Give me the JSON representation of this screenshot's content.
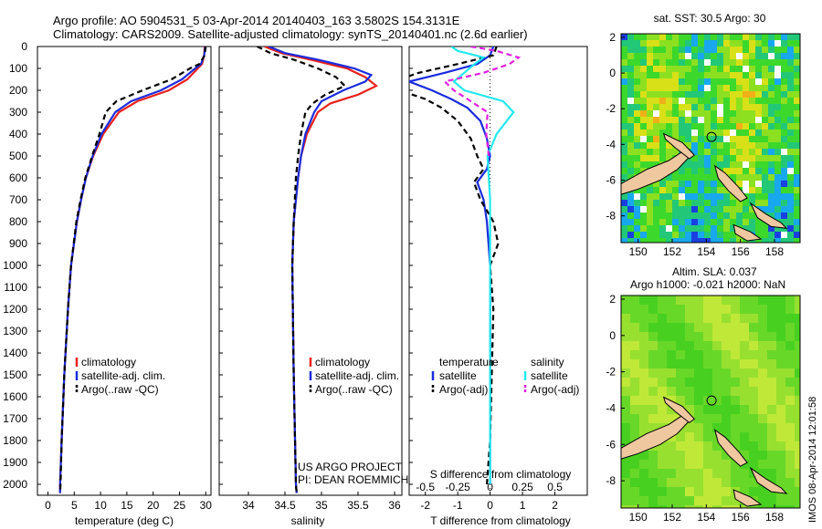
{
  "header": {
    "line1": "Argo profile: AO 5904531_5 03-Apr-2014 20140403_163 3.5802S 154.3131E",
    "line2": "Climatology: CARS2009. Satellite-adjusted climatology: synTS_20140401.nc (2.6d earlier)"
  },
  "credits": {
    "project": "US ARGO PROJECT",
    "pi": "PI: DEAN ROEMMICH"
  },
  "stamp": "IMOS 08-Apr-2014 12:01:58",
  "colors": {
    "climatology": "#e8221c",
    "satellite": "#1a2cdc",
    "argo": "#000000",
    "sat_salinity": "#22e8ee",
    "argo_salinity": "#e020e0",
    "land": "#f0c8a0"
  },
  "chart_data": [
    {
      "type": "line",
      "xlabel": "temperature (deg C)",
      "ylabel": "",
      "xlim": [
        -2,
        31
      ],
      "ylim": [
        2050,
        0
      ],
      "xticks": [
        "0",
        "5",
        "10",
        "15",
        "20",
        "25",
        "30"
      ],
      "yticks": [
        "0",
        "100",
        "200",
        "300",
        "400",
        "500",
        "600",
        "700",
        "800",
        "900",
        "1000",
        "1100",
        "1200",
        "1300",
        "1400",
        "1500",
        "1600",
        "1700",
        "1800",
        "1900",
        "2000"
      ],
      "legend": {
        "position": "lower-center",
        "entries": [
          "climatology",
          "satellite-adj. clim.",
          "Argo(..raw -QC)"
        ]
      },
      "series": [
        {
          "name": "climatology",
          "style": "solid",
          "color": "#e8221c",
          "depth": [
            0,
            40,
            80,
            100,
            150,
            200,
            250,
            300,
            400,
            500,
            600,
            700,
            800,
            1000,
            1200,
            1500,
            1800,
            2000,
            2040
          ],
          "values": [
            29.8,
            29.7,
            29.3,
            28.5,
            26.5,
            23.0,
            17.0,
            13.5,
            10.5,
            8.6,
            7.2,
            6.3,
            5.5,
            4.4,
            3.8,
            3.1,
            2.6,
            2.3,
            2.3
          ]
        },
        {
          "name": "satellite-adj. clim.",
          "style": "solid",
          "color": "#1a2cdc",
          "depth": [
            0,
            40,
            80,
            100,
            150,
            200,
            250,
            300,
            400,
            500,
            600,
            700,
            800,
            1000,
            1200,
            1500,
            1800,
            2000,
            2040
          ],
          "values": [
            29.9,
            29.7,
            29.1,
            28.0,
            25.5,
            21.5,
            15.8,
            12.8,
            10.2,
            8.5,
            7.2,
            6.3,
            5.5,
            4.4,
            3.8,
            3.1,
            2.6,
            2.3,
            2.3
          ]
        },
        {
          "name": "Argo(..raw -QC)",
          "style": "dashed",
          "color": "#000000",
          "depth": [
            0,
            40,
            80,
            100,
            150,
            200,
            250,
            300,
            400,
            500,
            600,
            700,
            800,
            1000,
            1200,
            1500,
            1800,
            2000,
            2040
          ],
          "values": [
            30.0,
            29.8,
            28.8,
            27.0,
            23.5,
            18.0,
            13.0,
            11.0,
            9.8,
            8.4,
            7.1,
            6.2,
            5.4,
            4.4,
            3.8,
            3.1,
            2.6,
            2.4,
            2.3
          ]
        }
      ]
    },
    {
      "type": "line",
      "xlabel": "salinity",
      "ylabel": "",
      "xlim": [
        33.6,
        36.1
      ],
      "ylim": [
        2050,
        0
      ],
      "xticks": [
        "34",
        "34.5",
        "35",
        "35.5",
        "36"
      ],
      "legend": {
        "position": "lower-right",
        "entries": [
          "climatology",
          "satellite-adj. clim.",
          "Argo(..raw -QC)"
        ]
      },
      "series": [
        {
          "name": "climatology",
          "style": "solid",
          "color": "#e8221c",
          "depth": [
            0,
            30,
            60,
            100,
            140,
            180,
            220,
            260,
            300,
            400,
            500,
            600,
            800,
            1000,
            1500,
            2000,
            2040
          ],
          "values": [
            34.22,
            34.45,
            34.85,
            35.35,
            35.6,
            35.75,
            35.5,
            35.12,
            34.95,
            34.8,
            34.72,
            34.68,
            34.62,
            34.6,
            34.62,
            34.65,
            34.66
          ]
        },
        {
          "name": "satellite-adj. clim.",
          "style": "solid",
          "color": "#1a2cdc",
          "depth": [
            0,
            30,
            60,
            100,
            130,
            160,
            200,
            250,
            300,
            400,
            500,
            600,
            800,
            1000,
            1500,
            2000,
            2040
          ],
          "values": [
            34.28,
            34.5,
            34.95,
            35.45,
            35.68,
            35.6,
            35.3,
            35.0,
            34.9,
            34.78,
            34.72,
            34.68,
            34.62,
            34.6,
            34.62,
            34.65,
            34.66
          ]
        },
        {
          "name": "Argo(..raw -QC)",
          "style": "dashed",
          "color": "#000000",
          "depth": [
            0,
            30,
            60,
            100,
            140,
            180,
            220,
            260,
            300,
            400,
            500,
            600,
            800,
            1000,
            1500,
            2000,
            2040
          ],
          "values": [
            34.12,
            34.3,
            34.62,
            34.95,
            35.2,
            35.32,
            35.05,
            34.88,
            34.78,
            34.72,
            34.68,
            34.65,
            34.62,
            34.6,
            34.62,
            34.65,
            34.66
          ]
        }
      ]
    },
    {
      "type": "line",
      "xlabel": "T difference from climatology",
      "x2label": "S difference from climatology",
      "xlim": [
        -2.5,
        3.0
      ],
      "ylim": [
        2050,
        0
      ],
      "xticks": [
        "-2",
        "-1",
        "0",
        "1",
        "2"
      ],
      "x2ticks": [
        "-0.5",
        "-0.25",
        "0",
        "0.25",
        "0.5"
      ],
      "legend": {
        "position": "lower-center",
        "columns": [
          {
            "header": "temperature",
            "entries": [
              "satellite",
              "Argo(-adj)"
            ]
          },
          {
            "header": "salinity",
            "entries": [
              "satellite",
              "Argo(-adj)"
            ]
          }
        ]
      },
      "series": [
        {
          "name": "satellite",
          "group": "temperature",
          "style": "solid",
          "color": "#1a2cdc",
          "depth": [
            0,
            40,
            80,
            120,
            160,
            200,
            240,
            280,
            340,
            420,
            500,
            560,
            620,
            700,
            800,
            1000,
            1500,
            2000
          ],
          "values": [
            0.1,
            0.0,
            -0.4,
            -1.4,
            -2.5,
            -1.8,
            -1.2,
            -0.7,
            -0.3,
            -0.1,
            0.0,
            -0.1,
            -0.4,
            -0.2,
            -0.1,
            0.0,
            0.0,
            0.0
          ]
        },
        {
          "name": "Argo(-adj)",
          "group": "temperature",
          "style": "dashed",
          "color": "#000000",
          "depth": [
            0,
            40,
            80,
            120,
            160,
            200,
            240,
            280,
            340,
            420,
            500,
            560,
            620,
            700,
            800,
            900,
            1000,
            1200,
            1500,
            1800,
            2000
          ],
          "values": [
            0.2,
            0.1,
            -1.0,
            -2.2,
            -3.0,
            -2.8,
            -2.0,
            -1.5,
            -1.0,
            -0.6,
            -0.4,
            -0.2,
            -0.5,
            -0.3,
            0.1,
            0.25,
            0.0,
            0.1,
            0.05,
            0.0,
            -0.1
          ]
        },
        {
          "name": "satellite",
          "group": "salinity",
          "style": "solid",
          "color": "#22e8ee",
          "depth": [
            0,
            20,
            50,
            80,
            120,
            160,
            200,
            250,
            300,
            400,
            500,
            700,
            1000,
            1500,
            2000
          ],
          "values": [
            -0.3,
            -0.25,
            -0.05,
            -0.12,
            -0.2,
            -0.28,
            -0.2,
            0.1,
            0.18,
            0.05,
            -0.02,
            0.0,
            0.0,
            0.0,
            0.0
          ]
        },
        {
          "name": "Argo(-adj)",
          "group": "salinity",
          "style": "dashed",
          "color": "#e020e0",
          "depth": [
            0,
            20,
            50,
            80,
            120,
            160,
            200,
            250,
            300,
            400,
            500
          ],
          "values": [
            -0.15,
            0.05,
            0.22,
            0.15,
            -0.05,
            -0.35,
            -0.28,
            -0.15,
            -0.02,
            -0.03,
            -0.01
          ]
        }
      ]
    },
    {
      "type": "heatmap",
      "title": "sat. SST: 30.5 Argo: 30",
      "xlim": [
        149,
        159.5
      ],
      "ylim": [
        -9.5,
        2.2
      ],
      "xticks": [
        "150",
        "152",
        "154",
        "156",
        "158"
      ],
      "yticks": [
        "2",
        "0",
        "-2",
        "-4",
        "-6",
        "-8"
      ],
      "marker": {
        "lon": 154.31,
        "lat": -3.58
      }
    },
    {
      "type": "heatmap",
      "title": "Altim. SLA: 0.037",
      "subtitle": "Argo h1000: -0.021 h2000: NaN",
      "xlim": [
        149,
        159.5
      ],
      "ylim": [
        -9.5,
        2.2
      ],
      "xticks": [
        "150",
        "152",
        "154",
        "156",
        "158"
      ],
      "yticks": [
        "2",
        "0",
        "-2",
        "-4",
        "-6",
        "-8"
      ],
      "marker": {
        "lon": 154.31,
        "lat": -3.58
      }
    }
  ]
}
